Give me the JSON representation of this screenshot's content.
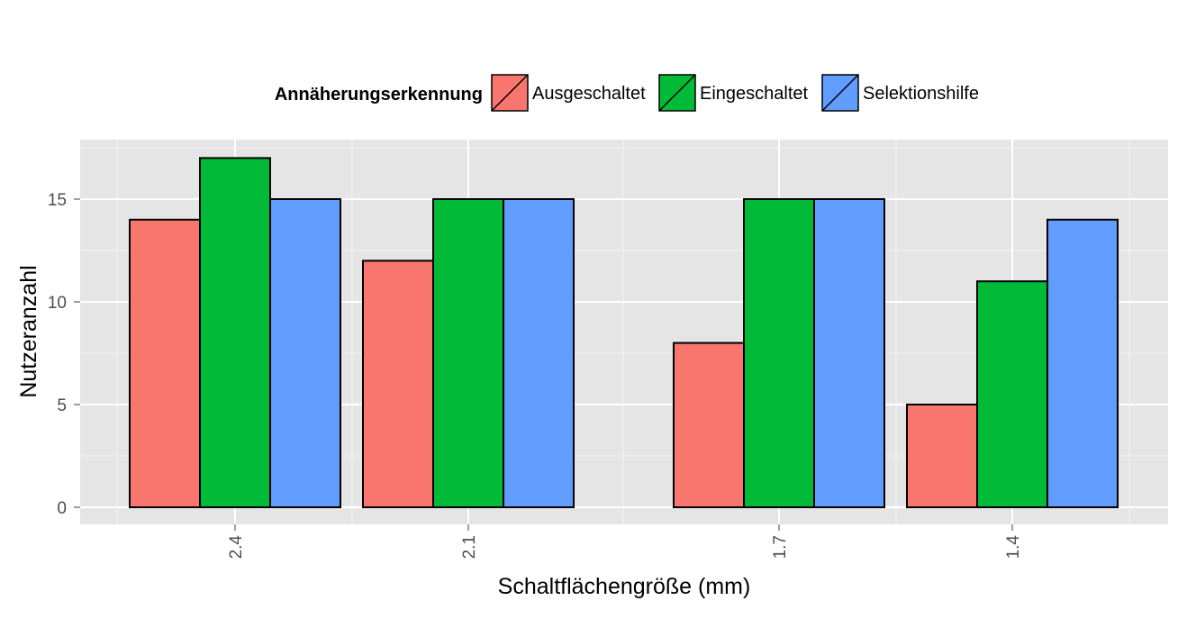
{
  "chart_data": {
    "type": "bar",
    "categories": [
      "2.4",
      "2.1",
      "1.7",
      "1.4"
    ],
    "xlabel": "Schaltflächengröße (mm)",
    "ylabel": "Nutzeranzahl",
    "ylim": [
      0,
      18.5
    ],
    "yticks": [
      "0",
      "5",
      "10",
      "15"
    ],
    "grid": true,
    "legend": {
      "title": "Annäherungserkennung",
      "position": "top"
    },
    "series": [
      {
        "name": "Ausgeschaltet",
        "color": "#F8766D",
        "values": [
          14,
          12,
          8,
          5
        ]
      },
      {
        "name": "Eingeschaltet",
        "color": "#00BA38",
        "values": [
          17,
          15,
          15,
          11
        ]
      },
      {
        "name": "Selektionshilfe",
        "color": "#619CFF",
        "values": [
          15,
          15,
          15,
          14
        ]
      }
    ]
  }
}
